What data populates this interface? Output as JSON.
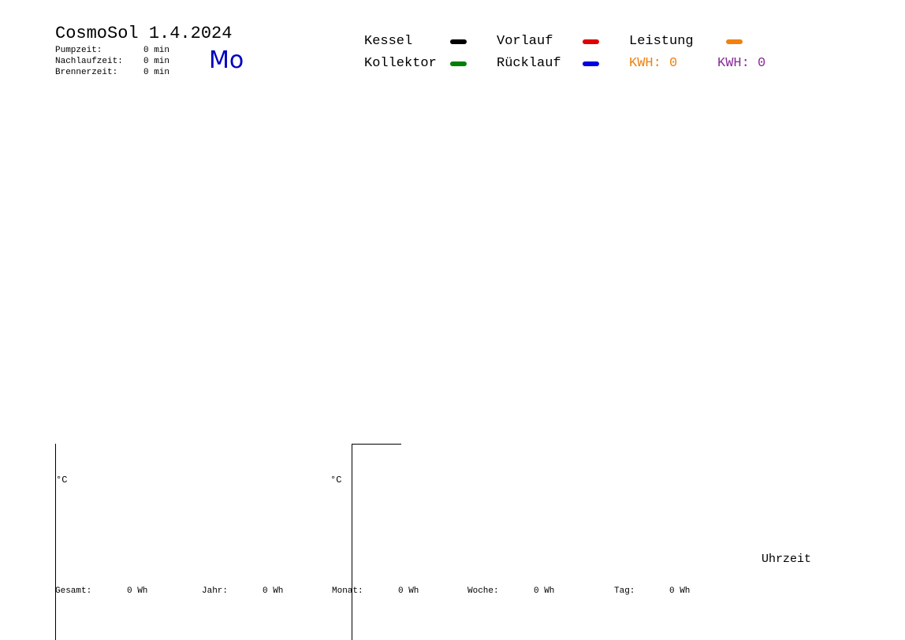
{
  "header": {
    "title": "CosmoSol 1.4.2024",
    "day": "Mo",
    "stats": [
      {
        "label": "Pumpzeit:",
        "value": "0 min"
      },
      {
        "label": "Nachlaufzeit:",
        "value": "0 min"
      },
      {
        "label": "Brennerzeit:",
        "value": "0 min"
      }
    ]
  },
  "legend": {
    "items": [
      {
        "name": "Kessel",
        "color": "#000000"
      },
      {
        "name": "Vorlauf",
        "color": "#e00000"
      },
      {
        "name": "Leistung",
        "color": "#f08010"
      },
      {
        "name": "Kollektor",
        "color": "#008000"
      },
      {
        "name": "Rücklauf",
        "color": "#0000e0"
      }
    ],
    "kwh": [
      {
        "text": "KWH: 0",
        "color": "#f08010"
      },
      {
        "text": "KWH: 0",
        "color": "#8a2b9a"
      }
    ]
  },
  "axes": {
    "left_unit": "°C",
    "right_unit": "°C",
    "x_label": "Uhrzeit"
  },
  "totals": [
    {
      "label": "Gesamt:",
      "value": "0 Wh"
    },
    {
      "label": "Jahr:",
      "value": "0 Wh"
    },
    {
      "label": "Monat:",
      "value": "0 Wh"
    },
    {
      "label": "Woche:",
      "value": "0 Wh"
    },
    {
      "label": "Tag:",
      "value": "0 Wh"
    }
  ]
}
